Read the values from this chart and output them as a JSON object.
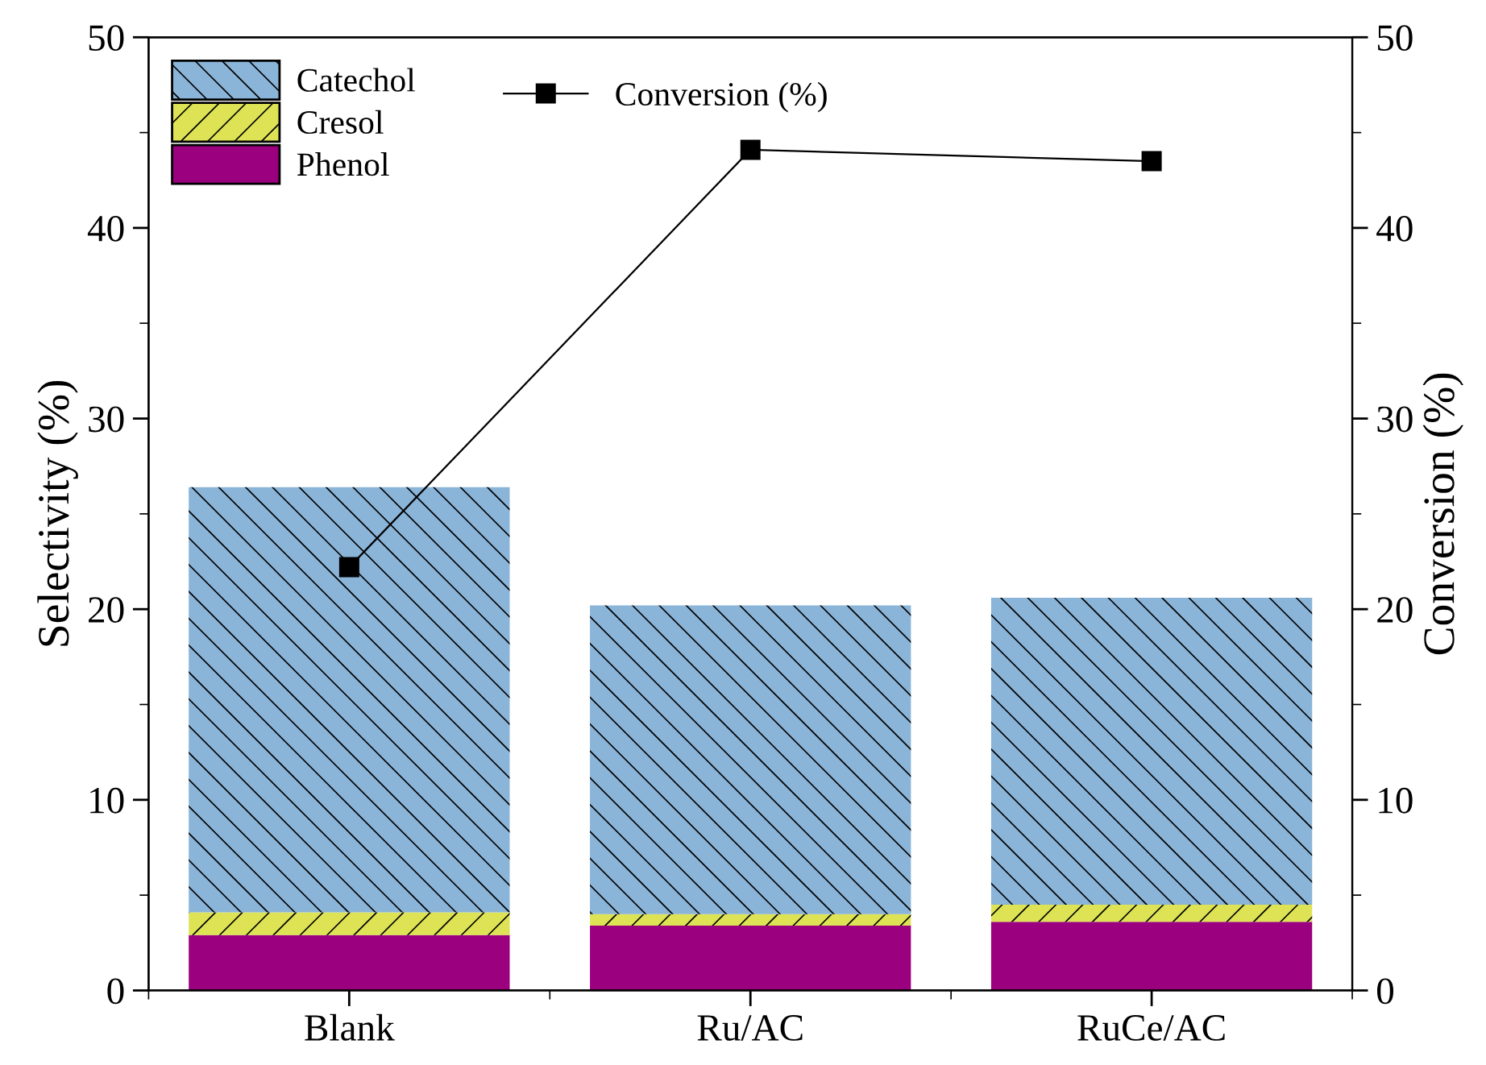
{
  "chart_data": {
    "type": "bar",
    "stacked": true,
    "ylabel": "Selectivity (%)",
    "y2label": "Conversion (%)",
    "categories": [
      "Blank",
      "Ru/AC",
      "RuCe/AC"
    ],
    "series": [
      {
        "name": "Phenol",
        "color": "#9b007f",
        "values": [
          2.9,
          3.4,
          3.6
        ]
      },
      {
        "name": "Cresol",
        "color": "#dde354",
        "values": [
          1.2,
          0.6,
          0.9
        ]
      },
      {
        "name": "Catechol",
        "color": "#8ab4d8",
        "values": [
          22.3,
          16.2,
          16.1
        ]
      },
      {
        "name": "Conversion (%)",
        "type": "line",
        "axis": "y2",
        "color": "#000000",
        "marker": "square",
        "line_style": "solid",
        "values": [
          22.2,
          44.1,
          43.5
        ]
      }
    ],
    "ylim": [
      0,
      50
    ],
    "yticks": [
      0,
      10,
      20,
      30,
      40,
      50
    ],
    "y2lim": [
      0,
      50
    ],
    "y2ticks": [
      0,
      10,
      20,
      30,
      40,
      50
    ],
    "grid": false,
    "legend": "top left"
  }
}
